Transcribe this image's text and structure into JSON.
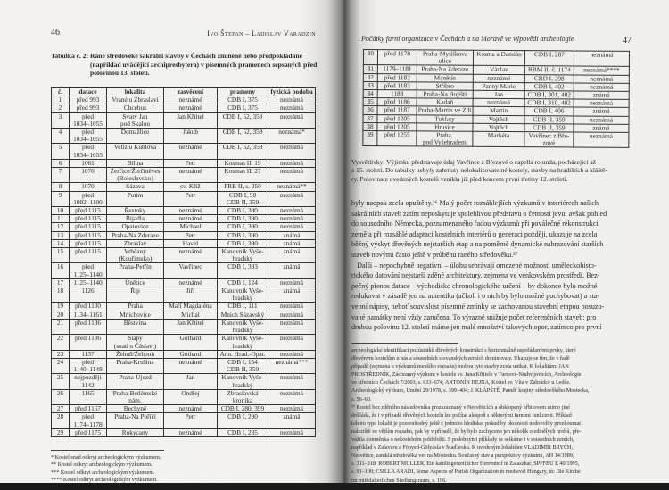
{
  "left_page": {
    "page_number": "46",
    "running_head": "Ivo Štefan – Ladislav Varadzin",
    "caption_label": "Tabulka č. 2:",
    "caption_text": "Raně středověké sakrální stavby v Čechách zmíněné nebo předpokládané (například uvádějící archipresbytera) v písemných pramenech sepsaných před polovinou 13. století.",
    "table": {
      "headers": [
        "č.",
        "datace",
        "lokalita",
        "zasvěcení",
        "prameny",
        "fyzická podoba"
      ],
      "rows": [
        [
          "1",
          "před 993",
          "Vrané u Zbraslavi",
          "neznámé",
          "CDB I, 375",
          "neznámá"
        ],
        [
          "2",
          "před 993",
          "Chcebus",
          "neznámé",
          "CDB I, 375",
          "neznámá"
        ],
        [
          "3",
          "před\n1034–1055",
          "Svatý Jan\npod Skalou",
          "Jan Křtitel",
          "CDB I, 52, 359",
          "neznámá"
        ],
        [
          "4",
          "před\n1034–1055",
          "Domažlice",
          "Jakub",
          "CDB I, 52, 359",
          "neznámá*"
        ],
        [
          "5",
          "před\n1034–1055",
          "Veliz u Kublova",
          "neznámé",
          "CDB I, 52, 359",
          "neznámá"
        ],
        [
          "6",
          "1061",
          "Bílina",
          "Petr",
          "Kosmas II, 19",
          "neznámá"
        ],
        [
          "7",
          "1070",
          "Žerčice/Žerčiněves\n(Boleslavsko)",
          "neznámé",
          "Kosmas II, 27",
          "neznámá"
        ],
        [
          "8",
          "1070",
          "Sázava",
          "sv. Kříž",
          "FRB II, s. 250",
          "neznámá**\n "
        ],
        [
          "9",
          "před\n1092–1100",
          "Putim",
          "Petr",
          "CDB I, 98\nCDB II, 359",
          "neznámá"
        ],
        [
          "10",
          "před 1115",
          "Řestoky",
          "neznámé",
          "CDB I, 390",
          "neznámá"
        ],
        [
          "11",
          "před 1115",
          "Bijadla",
          "neznámé",
          "CDB I, 390",
          "neznámá"
        ],
        [
          "12",
          "před 1115",
          "Opatovice",
          "Michael",
          "CDB I, 390",
          "neznámá"
        ],
        [
          "13",
          "před 1115",
          "Praha-Na Zderaze",
          "Petr",
          "CDB I, 390",
          "známá"
        ],
        [
          "14",
          "před 1115",
          "Zbraslav",
          "Havel",
          "CDB I, 390",
          "známá"
        ],
        [
          "15",
          "před 1115",
          "Vrbčany\n(Kouřimsko)",
          "neznámé",
          "Kanovník Vyše-\nhradský",
          "známá"
        ],
        [
          "16",
          "před\n1125–1140",
          "Praha-Petřín",
          "Vavřinec",
          "CDB I, 393",
          "známá"
        ],
        [
          "17",
          "1125–1140",
          "Únětice",
          "neznámé",
          "CDB I, 124",
          "neznámá"
        ],
        [
          "18",
          "1126",
          "Říp",
          "Jiří",
          "Kanovník Vyše-\nhradský",
          "známá"
        ],
        [
          "19",
          "před 1130",
          "Praha",
          "Maří Magdaléna",
          "CDB I, 111",
          "neznámá"
        ],
        [
          "20",
          "1134–1161",
          "Mnichovice",
          "Michal",
          "Mnich Sázavský",
          "neznámá"
        ],
        [
          "21",
          "před 1136",
          "Běstvina",
          "Jan Křtitel",
          "Kanovník Vyše-\nhradský",
          "neznámá"
        ],
        [
          "22",
          "před 1136",
          "Slapy\n(snad u Čáslavi)",
          "Gothard",
          "Kanovník Vyše-\nhradský",
          "neznámá"
        ],
        [
          "23",
          "1137",
          "Žehuň/Žehouň",
          "Gothard",
          "Ann. Hrad.-Opat.",
          "neznámá"
        ],
        [
          "24",
          "před\n1140–1148",
          "Praha-Krušina",
          "neznámé",
          "CDB I, 154\nCDB II, 359",
          "neznámá***"
        ],
        [
          "25",
          "nejpozději\n1142",
          "Praha-Újezd",
          "Jan",
          "Kanovník Vyše-\nhradský",
          "neznámá"
        ],
        [
          "26",
          "1165",
          "Praha-Betlémské\nnám.",
          "Ondřej",
          "Zbraslavská\nkronika",
          "neznámá"
        ],
        [
          "27",
          "před 1167",
          "Bechyně",
          "neznámé",
          "CDB I, 280, 399",
          "neznámá"
        ],
        [
          "28",
          "před\n1174–1178",
          "Praha-Na Poříčí",
          "Petr",
          "CDB I, 290",
          "známá"
        ],
        [
          "29",
          "před 1175",
          "Rokycany",
          "neznámé",
          "CDB I, 285",
          "neznámá"
        ]
      ]
    },
    "footnotes": [
      "* Kostel snad odkryt archeologickým výzkumem.",
      "** Kostel odkryt archeologickým výzkumem.",
      "*** Kostel odkryt archeologickým výzkumem.",
      "**** Kostel odkryt archeologickým výzkumem."
    ]
  },
  "right_page": {
    "page_number": "47",
    "running_head": "Počátky farní organizace v Čechách a na Moravě ve výpovědi archeologie",
    "table": {
      "rows": [
        [
          "30",
          "před 1178",
          "Praha-Myslíkova\nulice",
          "Kosma a Damián",
          "CDB I, 287",
          "neznámá"
        ],
        [
          "31",
          "1179–1181",
          "Praha-Na Zderaze",
          "Václav",
          "RBM II, č. 1174",
          "neznámá****"
        ],
        [
          "32",
          "před 1182",
          "Manětín",
          "neznámé",
          "CBD I, 298",
          "neznámá"
        ],
        [
          "33",
          "před 1183",
          "Stříbro",
          "Panny Marie",
          "CDB I, 402",
          "neznámá"
        ],
        [
          "34",
          "1183",
          "Praha-Na Bojišti",
          "Jan",
          "CDB I, 301, 402",
          "známá"
        ],
        [
          "35",
          "před 1186",
          "Kadaň",
          "neznámé",
          "CDB I, 310, 402",
          "neznámá"
        ],
        [
          "36",
          "před 1187",
          "Praha-Martin ve Zdi",
          "Martin",
          "CDB I, 406",
          "známá"
        ],
        [
          "37",
          "před 1205",
          "Tuklaty",
          "Vojtěch",
          "CDB II, 359",
          "neznámá"
        ],
        [
          "38",
          "před 1205",
          "Hrusice",
          "Vojtěch",
          "CDB II, 359",
          "známá"
        ],
        [
          "39",
          "před 1255",
          "Praha,\npod Vyšehradem",
          "Markéta",
          "Vavřinec z Bře-\nzové",
          "neznámá"
        ]
      ]
    },
    "explanation_lines": [
      "Vysvětlivky: Výjimku představuje údaj Vavřince z Březové o capella rotunda, pocházející až",
      "z 15. století. Do tabulky nebyly zahrnuty nelokalizovatelné kostely, stavby na hradištích a kláště-",
      "ry. Polovina z uvedených kostelů vznikla již před koncem první třetiny 12. století."
    ],
    "body_lines": [
      "byly naopak zcela opuštěny.³⁶ Malý počet rozsáhlejších výzkumů v interiérech našich",
      "sakrálních staveb zatím neposkytuje spolehlivou představu o četnosti jevu, avšak pohled",
      "do sousedního Německa, poznamenaného řadou výzkumů při poválečné rekonstrukci",
      "země a při rozsáhlé adaptaci kostelních interiérů o generaci později, ukazuje na zcela",
      "běžný výskyt dřevěných nejstarších etap a na poměrně dynamické nahrazování starších",
      "staveb novými často ještě v průběhu raného středověku.³⁷",
      "   Další – nepochybně negativní – úlohu sehrávají omezené možnosti uměleckohisto-",
      "rického datování nejstarší zděné architektury, zejména ve venkovském prostředí. Bez-",
      "pečný přenos datace – východisko chronologického určení – by dokonce bylo možné",
      "redukovat v zásadě jen na autentika (ačkoli i o nich by bylo možné pochybovat) a sta-",
      "vební nápisy, neboť souvislost písemné zmínky se zachovanou stavební etapou posuzo-",
      "vané památky není vždy zaručena. To výrazně snižuje počet referenčních staveb: pro",
      "druhou polovinu 12. století máme jen malé množství takových opor, zatímco pro první"
    ],
    "footnote_lines": [
      "archeologické identifikaci pozůstatků dřevěných konstrukcí s horizontálně uspořádanými prvky, které",
      "dřevěným kostelům u nás a sousedních slovanských zemích dominovaly. Ukazuje se tím, že v řadě",
      "případů (zejména u výzkumů menšího rozsahu) mohou tyto stavby zcela unikat. K lokalitám: JAN",
      "PROSTŘEDNÍK, Záchranný výzkum v kostele sv. Jana Křtitele v Turnově-Nudvojovicích, Archeologie",
      "ve středních Čechách 7/2003, s. 633–674; ANTONÍN HEJNA, Kostel sv. Víta v Zahrádce u Ledče.",
      "Archeologický výzkum, Umění 29/1978, s. 399–404; J. KLÁPŠTĚ, Paměť krajiny středověkého Mostecka,",
      "s. 56–60.",
      "³⁷ Kostel bez zděného následovníka prozkoumaný v Nesvěticích a obklopený hřbitovem mimo jiné",
      "dokládá, že i v případě dřevěných kostelů lze počítat alespoň s některými farními funkcemi. Příklad",
      "tohoto typu lokalit je pozoruhodný ještě z jednoho hlediska: pokud by okolnosti nedovolily prozkoumat",
      "naleziště ve větším rozsahu, pak by v případě, že by bylo zachyceno jen několik ojedinělých hrobů, pře-",
      "vážila domněnka o nekostelním pohřebišti. S podobnými příklady se setkáme i v sousedních zemích,",
      "například v Zalaváru a Fönyed-Gölyásla v Maďarsku. K uvedeným lokalitám VLADIMÍR BRYCH,",
      "Nesvětice, zaniklá středověká ves na Mostecku. Současný stav a perspektivy výzkumu, AH 14/1989,",
      "s. 311–318; ROBERT MÜLLER, Ein kanilingerzeitlicher Herrenhof in Zalaszhar, SPFFBU E 40/1995,",
      "s. 91–100; CSILLA ARADI, Some Aspects of Parish Organization in medieval Hungary, in: Die Kirche",
      "im mittelalterlichen Siedlungsraum, s. 196."
    ]
  }
}
